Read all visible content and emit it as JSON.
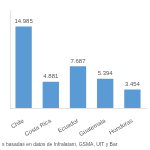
{
  "chart_data": {
    "type": "bar",
    "categories": [
      "Chile",
      "Costa Rica",
      "Ecuador",
      "Guatemala",
      "Honduras"
    ],
    "values": [
      14985,
      4881,
      7687,
      5394,
      3454
    ],
    "value_labels": [
      "14.985",
      "4.881",
      "7.687",
      "5.394",
      "3.454"
    ],
    "data_labels": true,
    "color": "#5b9bd5",
    "ylim": [
      0,
      18000
    ],
    "grid": false,
    "tick_labels": "x",
    "annotations": [
      "s basadas en datos de Infralatam, GSMA, UIT y Bar"
    ]
  }
}
